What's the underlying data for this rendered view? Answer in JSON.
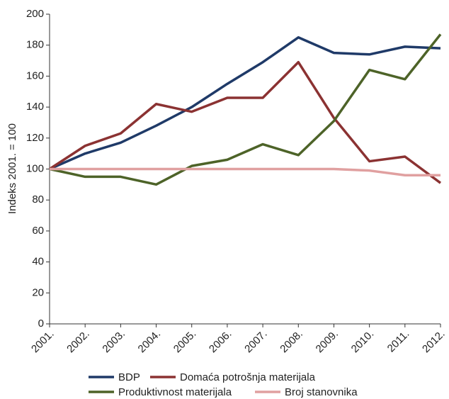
{
  "chart_data": {
    "type": "line",
    "y_label": "Indeks 2001. = 100",
    "categories": [
      "2001.",
      "2002.",
      "2003.",
      "2004.",
      "2005.",
      "2006.",
      "2007.",
      "2008.",
      "2009.",
      "2010.",
      "2011.",
      "2012."
    ],
    "series": [
      {
        "name": "BDP",
        "color": "#1f3a68",
        "values": [
          100,
          110,
          117,
          128,
          140,
          155,
          169,
          185,
          175,
          174,
          179,
          178
        ]
      },
      {
        "name": "Domaća potrošnja materijala",
        "color": "#8b3232",
        "values": [
          100,
          115,
          123,
          142,
          137,
          146,
          146,
          169,
          133,
          105,
          108,
          91
        ]
      },
      {
        "name": "Produktivnost materijala",
        "color": "#4d6328",
        "values": [
          100,
          95,
          95,
          90,
          102,
          106,
          116,
          109,
          131,
          164,
          158,
          187
        ]
      },
      {
        "name": "Broj stanovnika",
        "color": "#e0a0a0",
        "values": [
          100,
          100,
          100,
          100,
          100,
          100,
          100,
          100,
          100,
          99,
          96,
          96
        ]
      }
    ],
    "ylim": [
      0,
      200
    ],
    "yticks": [
      0,
      20,
      40,
      60,
      80,
      100,
      120,
      140,
      160,
      180,
      200
    ],
    "grid": false
  }
}
